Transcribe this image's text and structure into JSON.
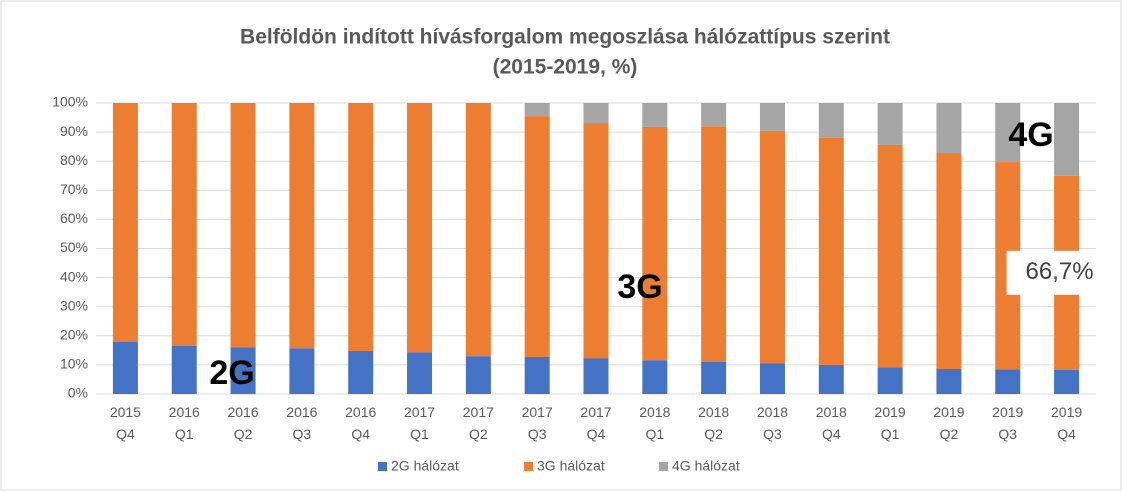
{
  "chart_data": {
    "type": "bar",
    "stacked": true,
    "title": "Belföldön indított hívásforgalom megoszlása hálózattípus szerint",
    "subtitle": "(2015-2019, %)",
    "categories": [
      "2015 Q4",
      "2016 Q1",
      "2016 Q2",
      "2016 Q3",
      "2016 Q4",
      "2017 Q1",
      "2017 Q2",
      "2017 Q3",
      "2017 Q4",
      "2018 Q1",
      "2018 Q2",
      "2018 Q3",
      "2018 Q4",
      "2019 Q1",
      "2019 Q2",
      "2019 Q3",
      "2019 Q4"
    ],
    "series": [
      {
        "name": "2G hálózat",
        "color": "#4472c4",
        "values": [
          18,
          16.5,
          16,
          15.7,
          14.8,
          14.3,
          13,
          12.7,
          12.2,
          11.6,
          11,
          10.6,
          10,
          9.2,
          8.6,
          8.5,
          8.3
        ]
      },
      {
        "name": "3G hálózat",
        "color": "#ed7d31",
        "values": [
          82,
          83.5,
          84,
          84.3,
          85.2,
          85.7,
          87,
          82.8,
          80.9,
          80.2,
          81,
          79.8,
          78,
          76.4,
          74.2,
          71.2,
          66.7
        ],
        "value_labels": [
          null,
          null,
          null,
          null,
          null,
          null,
          null,
          null,
          null,
          null,
          null,
          null,
          null,
          null,
          null,
          null,
          "66,7%"
        ]
      },
      {
        "name": "4G hálózat",
        "color": "#a5a5a5",
        "values": [
          0,
          0,
          0,
          0,
          0,
          0,
          0,
          4.5,
          6.9,
          8.2,
          8,
          9.6,
          12,
          14.4,
          17.2,
          20.3,
          25
        ]
      }
    ],
    "annotations": [
      "2G",
      "3G",
      "4G"
    ],
    "ylim": [
      0,
      100
    ],
    "yticks": [
      {
        "value": 0,
        "label": "0%"
      },
      {
        "value": 10,
        "label": "10%"
      },
      {
        "value": 20,
        "label": "20%"
      },
      {
        "value": 30,
        "label": "30%"
      },
      {
        "value": 40,
        "label": "40%"
      },
      {
        "value": 50,
        "label": "50%"
      },
      {
        "value": 60,
        "label": "60%"
      },
      {
        "value": 70,
        "label": "70%"
      },
      {
        "value": 80,
        "label": "80%"
      },
      {
        "value": 90,
        "label": "90%"
      },
      {
        "value": 100,
        "label": "100%"
      }
    ],
    "grid": true,
    "legend": "bottom"
  }
}
